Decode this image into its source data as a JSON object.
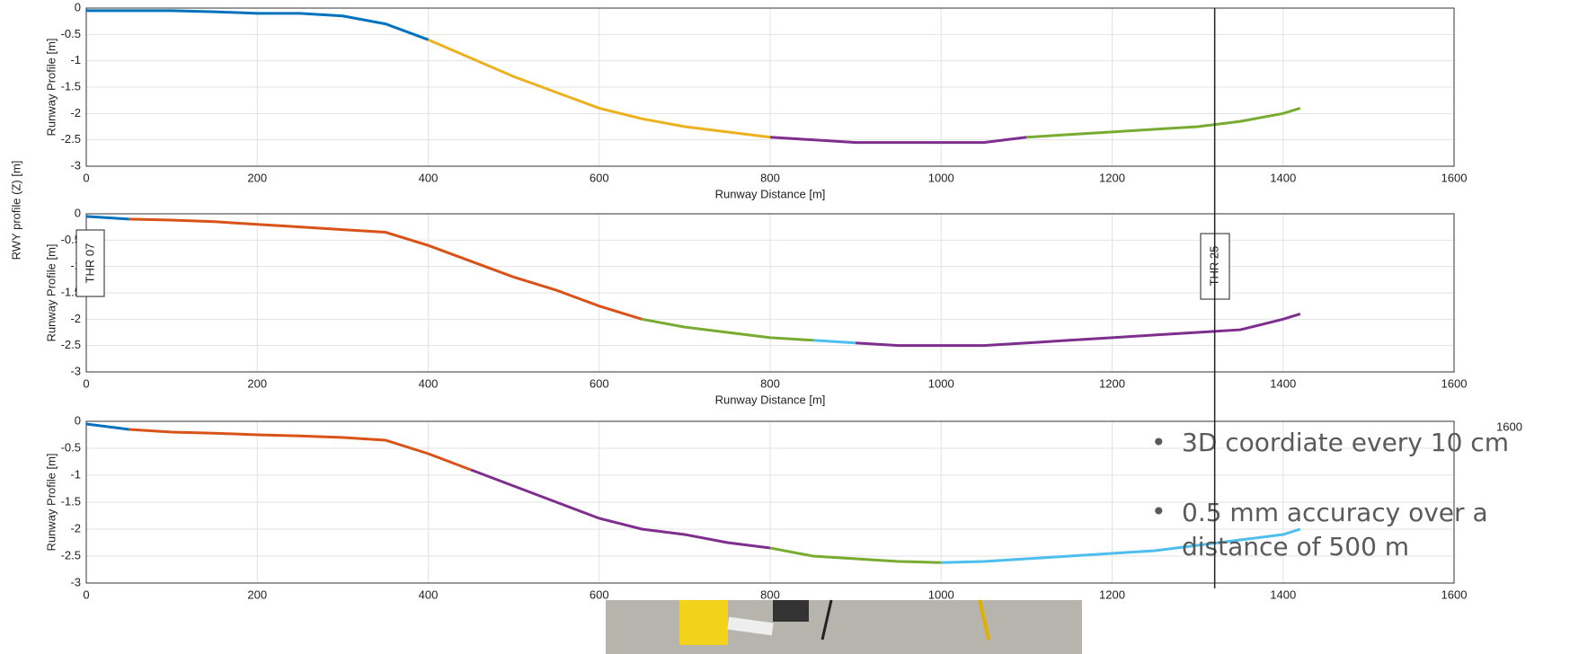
{
  "page": {
    "y_axis_title": "RWY profile (Z) [m]",
    "thr_left": "THR 07",
    "thr_right": "THR 25",
    "threshold_x": 1320,
    "stray_label": "1600",
    "bullets": [
      "3D coordiate every 10 cm",
      "0.5 mm accuracy over a distance of 500 m"
    ]
  },
  "chart_data": [
    {
      "type": "line",
      "y_label": "Runway Profile [m]",
      "x_label": "Runway Distance [m]",
      "xlim": [
        0,
        1600
      ],
      "xticks": [
        0,
        200,
        400,
        600,
        800,
        1000,
        1200,
        1400,
        1600
      ],
      "ylim": [
        -3,
        0
      ],
      "yticks": [
        -3,
        -2.5,
        -2,
        -1.5,
        -1,
        -0.5,
        0
      ],
      "grid": true,
      "series": [
        {
          "color": "#0072bd",
          "x": [
            0,
            50,
            100,
            150,
            200,
            250,
            300,
            350,
            400
          ],
          "values": [
            -0.05,
            -0.05,
            -0.05,
            -0.07,
            -0.1,
            -0.1,
            -0.15,
            -0.3,
            -0.6
          ]
        },
        {
          "color": "#edb120",
          "x": [
            400,
            450,
            500,
            550,
            600,
            650,
            700,
            750,
            800
          ],
          "values": [
            -0.6,
            -0.95,
            -1.3,
            -1.6,
            -1.9,
            -2.1,
            -2.25,
            -2.35,
            -2.45
          ]
        },
        {
          "color": "#7e2f8e",
          "x": [
            800,
            850,
            900,
            950,
            1000,
            1050,
            1100
          ],
          "values": [
            -2.45,
            -2.5,
            -2.55,
            -2.55,
            -2.55,
            -2.55,
            -2.45
          ]
        },
        {
          "color": "#77ac30",
          "x": [
            1100,
            1150,
            1200,
            1250,
            1300,
            1350,
            1400,
            1420
          ],
          "values": [
            -2.45,
            -2.4,
            -2.35,
            -2.3,
            -2.25,
            -2.15,
            -2.0,
            -1.9
          ]
        }
      ]
    },
    {
      "type": "line",
      "y_label": "Runway Profile [m]",
      "x_label": "Runway Distance [m]",
      "xlim": [
        0,
        1600
      ],
      "xticks": [
        0,
        200,
        400,
        600,
        800,
        1000,
        1200,
        1400,
        1600
      ],
      "ylim": [
        -3,
        0
      ],
      "yticks": [
        -3,
        -2.5,
        -2,
        -1.5,
        -1,
        -0.5,
        0
      ],
      "grid": true,
      "series": [
        {
          "color": "#0072bd",
          "x": [
            0,
            50
          ],
          "values": [
            -0.05,
            -0.1
          ]
        },
        {
          "color": "#d95319",
          "x": [
            50,
            100,
            150,
            200,
            250,
            300,
            350,
            400,
            450,
            500,
            550,
            600,
            650
          ],
          "values": [
            -0.1,
            -0.12,
            -0.15,
            -0.2,
            -0.25,
            -0.3,
            -0.35,
            -0.6,
            -0.9,
            -1.2,
            -1.45,
            -1.75,
            -2.0
          ]
        },
        {
          "color": "#77ac30",
          "x": [
            650,
            700,
            750,
            800,
            850
          ],
          "values": [
            -2.0,
            -2.15,
            -2.25,
            -2.35,
            -2.4
          ]
        },
        {
          "color": "#4dbeee",
          "x": [
            850,
            900
          ],
          "values": [
            -2.4,
            -2.45
          ]
        },
        {
          "color": "#7e2f8e",
          "x": [
            900,
            950,
            1000,
            1050,
            1100,
            1150,
            1200,
            1250,
            1300,
            1350,
            1400,
            1420
          ],
          "values": [
            -2.45,
            -2.5,
            -2.5,
            -2.5,
            -2.45,
            -2.4,
            -2.35,
            -2.3,
            -2.25,
            -2.2,
            -2.0,
            -1.9
          ]
        }
      ]
    },
    {
      "type": "line",
      "y_label": "Runway Profile [m]",
      "xlim": [
        0,
        1600
      ],
      "xticks": [
        0,
        200,
        400,
        600,
        800,
        1000,
        1200,
        1400,
        1600
      ],
      "ylim": [
        -3,
        0
      ],
      "yticks": [
        -3,
        -2.5,
        -2,
        -1.5,
        -1,
        -0.5,
        0
      ],
      "grid": true,
      "series": [
        {
          "color": "#0072bd",
          "x": [
            0,
            50
          ],
          "values": [
            -0.05,
            -0.15
          ]
        },
        {
          "color": "#d95319",
          "x": [
            50,
            100,
            150,
            200,
            250,
            300,
            350,
            400,
            450
          ],
          "values": [
            -0.15,
            -0.2,
            -0.22,
            -0.25,
            -0.27,
            -0.3,
            -0.35,
            -0.6,
            -0.9
          ]
        },
        {
          "color": "#7e2f8e",
          "x": [
            450,
            500,
            550,
            600,
            650,
            700,
            750,
            800
          ],
          "values": [
            -0.9,
            -1.2,
            -1.5,
            -1.8,
            -2.0,
            -2.1,
            -2.25,
            -2.35
          ]
        },
        {
          "color": "#77ac30",
          "x": [
            800,
            850,
            900,
            950,
            1000
          ],
          "values": [
            -2.35,
            -2.5,
            -2.55,
            -2.6,
            -2.62
          ]
        },
        {
          "color": "#4dbeee",
          "x": [
            1000,
            1050,
            1100,
            1150,
            1200,
            1250,
            1300,
            1350,
            1400,
            1420
          ],
          "values": [
            -2.62,
            -2.6,
            -2.55,
            -2.5,
            -2.45,
            -2.4,
            -2.3,
            -2.2,
            -2.1,
            -2.0
          ]
        }
      ]
    }
  ]
}
